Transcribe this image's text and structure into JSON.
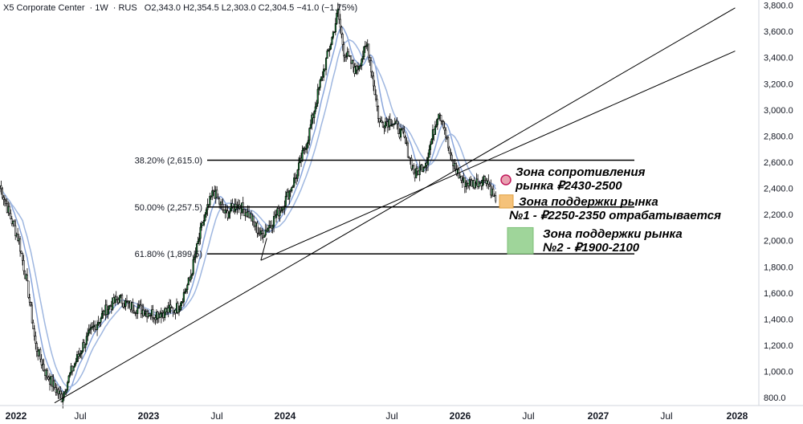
{
  "header": {
    "symbol": "X5 Corporate Center",
    "interval": "1W",
    "exchange": "RUS",
    "ohlc": "O2,343.0  H2,354.5  L2,303.0  C2,304.5  −41.0 (−1.75%)"
  },
  "chart_data": {
    "type": "candlestick",
    "y_axis": {
      "min": 740,
      "max": 3840,
      "ticks": [
        800,
        1000,
        1200,
        1400,
        1600,
        1800,
        2000,
        2200,
        2400,
        2600,
        2800,
        3000,
        3200,
        3400,
        3600,
        3800
      ],
      "side": "right"
    },
    "x_axis": {
      "labels": [
        "2022",
        "Jul",
        "2023",
        "Jul",
        "2024",
        "Jul",
        "2026",
        "Jul",
        "2027",
        "Jul",
        "2028"
      ]
    },
    "fib_levels": [
      {
        "label": "38.20% (2,615.0)",
        "value": 2615
      },
      {
        "label": "50.00% (2,257.5)",
        "value": 2257.5
      },
      {
        "label": "61.80% (1,899.5)",
        "value": 1899.5
      }
    ],
    "zones": [
      {
        "label": "Зона сопротивления рынка ₽2430-2500",
        "line1": "Зона сопротивления",
        "line2": "рынка ₽2430-2500",
        "low": 2430,
        "high": 2500,
        "color": "#e8a0b0"
      },
      {
        "label": "Зона поддержки рынка №1 - ₽2250-2350 отрабатывается",
        "line1": "Зона поддержки рынка",
        "line2": "№1 - ₽2250-2350 отрабатывается",
        "low": 2250,
        "high": 2350,
        "color": "#f5c27a"
      },
      {
        "label": "Зона поддержки рынка №2 - ₽1900-2100",
        "line1": "Зона поддержки рынка",
        "line2": "№2 - ₽1900-2100",
        "low": 1900,
        "high": 2100,
        "color": "#9fd59a"
      }
    ],
    "close_path": [
      [
        0,
        2420
      ],
      [
        8,
        2200
      ],
      [
        16,
        2000
      ],
      [
        24,
        1600
      ],
      [
        30,
        1200
      ],
      [
        38,
        1000
      ],
      [
        46,
        880
      ],
      [
        52,
        800
      ],
      [
        60,
        1000
      ],
      [
        70,
        1200
      ],
      [
        80,
        1350
      ],
      [
        90,
        1480
      ],
      [
        100,
        1560
      ],
      [
        110,
        1500
      ],
      [
        120,
        1470
      ],
      [
        130,
        1440
      ],
      [
        140,
        1460
      ],
      [
        150,
        1490
      ],
      [
        160,
        1700
      ],
      [
        170,
        2100
      ],
      [
        180,
        2380
      ],
      [
        190,
        2200
      ],
      [
        200,
        2280
      ],
      [
        210,
        2200
      ],
      [
        220,
        2040
      ],
      [
        230,
        2150
      ],
      [
        240,
        2300
      ],
      [
        250,
        2500
      ],
      [
        260,
        2800
      ],
      [
        270,
        3200
      ],
      [
        280,
        3550
      ],
      [
        285,
        3750
      ],
      [
        290,
        3450
      ],
      [
        300,
        3300
      ],
      [
        310,
        3500
      ],
      [
        320,
        2900
      ],
      [
        330,
        2920
      ],
      [
        340,
        2800
      ],
      [
        350,
        2500
      ],
      [
        360,
        2620
      ],
      [
        370,
        3000
      ],
      [
        374,
        2900
      ],
      [
        380,
        2620
      ],
      [
        390,
        2450
      ],
      [
        400,
        2440
      ],
      [
        410,
        2480
      ],
      [
        418,
        2304
      ]
    ],
    "candles_total": 420,
    "trendlines": [
      [
        [
          46,
          760
        ],
        [
          620,
          3780
        ]
      ],
      [
        [
          220,
          1850
        ],
        [
          620,
          3450
        ]
      ]
    ],
    "moving_averages": 2
  }
}
